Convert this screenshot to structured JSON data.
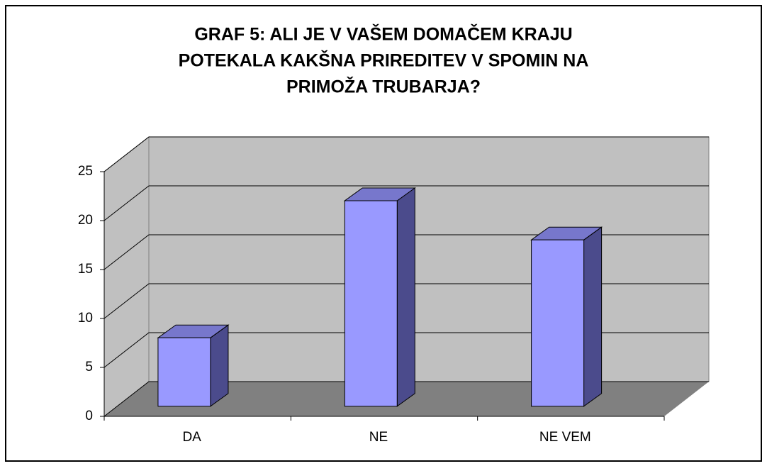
{
  "chart_data": {
    "type": "bar3d",
    "title": [
      "GRAF 5: ALI JE V VAŠEM DOMAČEM KRAJU",
      "POTEKALA KAKŠNA PRIREDITEV V SPOMIN NA",
      "PRIMOŽA TRUBARJA?"
    ],
    "categories": [
      "DA",
      "NE",
      "NE VEM"
    ],
    "values": [
      7,
      21,
      17
    ],
    "color": "#9999ff",
    "ylim": [
      0,
      25
    ],
    "yticks": [
      0,
      5,
      10,
      15,
      20,
      25
    ],
    "grid": true
  }
}
